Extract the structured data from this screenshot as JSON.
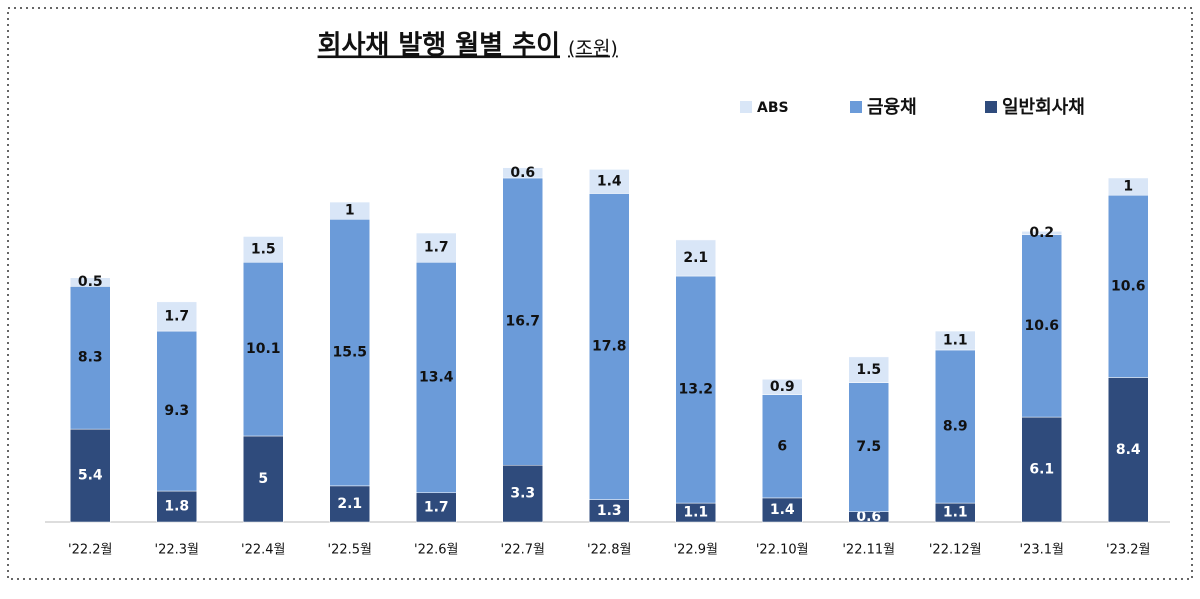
{
  "chart_data": {
    "type": "stacked-bar",
    "title": "회사채 발행 월별 추이",
    "unit": "(조원)",
    "categories": [
      "'22.2월",
      "'22.3월",
      "'22.4월",
      "'22.5월",
      "'22.6월",
      "'22.7월",
      "'22.8월",
      "'22.9월",
      "'22.10월",
      "'22.11월",
      "'22.12월",
      "'23.1월",
      "'23.2월"
    ],
    "series": [
      {
        "name": "일반회사채",
        "color": "#2f4b7c",
        "values": [
          5.4,
          1.8,
          5,
          2.1,
          1.7,
          3.3,
          1.3,
          1.1,
          1.4,
          0.6,
          1.1,
          6.1,
          8.4
        ]
      },
      {
        "name": "금융채",
        "color": "#6b9bd9",
        "values": [
          8.3,
          9.3,
          10.1,
          15.5,
          13.4,
          16.7,
          17.8,
          13.2,
          6,
          7.5,
          8.9,
          10.6,
          10.6
        ]
      },
      {
        "name": "ABS",
        "color": "#d9e6f7",
        "values": [
          0.5,
          1.7,
          1.5,
          1,
          1.7,
          0.6,
          1.4,
          2.1,
          0.9,
          1.5,
          1.1,
          0.2,
          1
        ]
      }
    ],
    "legend": "top-right"
  }
}
